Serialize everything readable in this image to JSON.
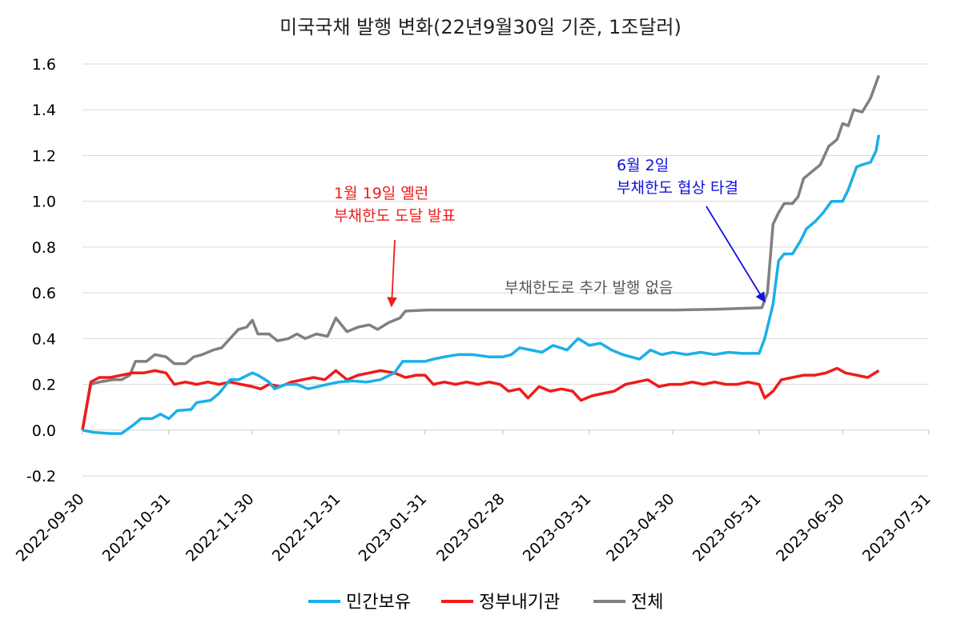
{
  "chart_data": {
    "type": "line",
    "title": "미국국채 발행 변화(22년9월30일 기준, 1조달러)",
    "xlabel": "",
    "ylabel": "",
    "ylim": [
      -0.2,
      1.6
    ],
    "yticks": [
      "1.6",
      "1.4",
      "1.2",
      "1.0",
      "0.8",
      "0.6",
      "0.4",
      "0.2",
      "0.0",
      "-0.2"
    ],
    "xlim": [
      "2022-09-30",
      "2023-07-31"
    ],
    "xticks": [
      "2022-09-30",
      "2022-10-31",
      "2022-11-30",
      "2022-12-31",
      "2023-01-31",
      "2023-02-28",
      "2023-03-31",
      "2023-04-30",
      "2023-05-31",
      "2023-06-30",
      "2023-07-31"
    ],
    "grid": true,
    "legend_position": "bottom",
    "series": [
      {
        "name": "민간보유",
        "color": "#1ab0e8",
        "points": [
          [
            "2022-09-30",
            0.0
          ],
          [
            "2022-10-04",
            -0.01
          ],
          [
            "2022-10-10",
            -0.015
          ],
          [
            "2022-10-14",
            -0.015
          ],
          [
            "2022-10-18",
            0.02
          ],
          [
            "2022-10-21",
            0.05
          ],
          [
            "2022-10-25",
            0.05
          ],
          [
            "2022-10-28",
            0.07
          ],
          [
            "2022-10-31",
            0.05
          ],
          [
            "2022-11-03",
            0.085
          ],
          [
            "2022-11-08",
            0.09
          ],
          [
            "2022-11-10",
            0.12
          ],
          [
            "2022-11-15",
            0.13
          ],
          [
            "2022-11-18",
            0.16
          ],
          [
            "2022-11-22",
            0.22
          ],
          [
            "2022-11-25",
            0.22
          ],
          [
            "2022-11-30",
            0.25
          ],
          [
            "2022-12-02",
            0.24
          ],
          [
            "2022-12-06",
            0.21
          ],
          [
            "2022-12-08",
            0.18
          ],
          [
            "2022-12-12",
            0.2
          ],
          [
            "2022-12-16",
            0.2
          ],
          [
            "2022-12-20",
            0.18
          ],
          [
            "2022-12-27",
            0.2
          ],
          [
            "2022-12-31",
            0.21
          ],
          [
            "2023-01-05",
            0.215
          ],
          [
            "2023-01-10",
            0.21
          ],
          [
            "2023-01-15",
            0.22
          ],
          [
            "2023-01-20",
            0.25
          ],
          [
            "2023-01-23",
            0.3
          ],
          [
            "2023-01-27",
            0.3
          ],
          [
            "2023-01-31",
            0.3
          ],
          [
            "2023-02-03",
            0.31
          ],
          [
            "2023-02-07",
            0.32
          ],
          [
            "2023-02-12",
            0.33
          ],
          [
            "2023-02-17",
            0.33
          ],
          [
            "2023-02-23",
            0.32
          ],
          [
            "2023-02-28",
            0.32
          ],
          [
            "2023-03-03",
            0.33
          ],
          [
            "2023-03-06",
            0.36
          ],
          [
            "2023-03-10",
            0.35
          ],
          [
            "2023-03-14",
            0.34
          ],
          [
            "2023-03-18",
            0.37
          ],
          [
            "2023-03-23",
            0.35
          ],
          [
            "2023-03-27",
            0.4
          ],
          [
            "2023-03-31",
            0.37
          ],
          [
            "2023-04-04",
            0.38
          ],
          [
            "2023-04-08",
            0.35
          ],
          [
            "2023-04-12",
            0.33
          ],
          [
            "2023-04-18",
            0.31
          ],
          [
            "2023-04-22",
            0.35
          ],
          [
            "2023-04-26",
            0.33
          ],
          [
            "2023-04-30",
            0.34
          ],
          [
            "2023-05-05",
            0.33
          ],
          [
            "2023-05-10",
            0.34
          ],
          [
            "2023-05-15",
            0.33
          ],
          [
            "2023-05-20",
            0.34
          ],
          [
            "2023-05-25",
            0.335
          ],
          [
            "2023-05-31",
            0.335
          ],
          [
            "2023-06-02",
            0.4
          ],
          [
            "2023-06-05",
            0.55
          ],
          [
            "2023-06-07",
            0.74
          ],
          [
            "2023-06-09",
            0.77
          ],
          [
            "2023-06-12",
            0.77
          ],
          [
            "2023-06-15",
            0.83
          ],
          [
            "2023-06-17",
            0.88
          ],
          [
            "2023-06-20",
            0.91
          ],
          [
            "2023-06-23",
            0.95
          ],
          [
            "2023-06-26",
            1.0
          ],
          [
            "2023-06-30",
            1.0
          ],
          [
            "2023-07-02",
            1.05
          ],
          [
            "2023-07-05",
            1.15
          ],
          [
            "2023-07-07",
            1.16
          ],
          [
            "2023-07-10",
            1.17
          ],
          [
            "2023-07-12",
            1.22
          ],
          [
            "2023-07-13",
            1.29
          ]
        ]
      },
      {
        "name": "정부내기관",
        "color": "#ee1c1c",
        "points": [
          [
            "2022-09-30",
            0.0
          ],
          [
            "2022-10-03",
            0.21
          ],
          [
            "2022-10-06",
            0.23
          ],
          [
            "2022-10-10",
            0.23
          ],
          [
            "2022-10-14",
            0.24
          ],
          [
            "2022-10-18",
            0.25
          ],
          [
            "2022-10-22",
            0.25
          ],
          [
            "2022-10-26",
            0.26
          ],
          [
            "2022-10-30",
            0.25
          ],
          [
            "2022-11-02",
            0.2
          ],
          [
            "2022-11-06",
            0.21
          ],
          [
            "2022-11-10",
            0.2
          ],
          [
            "2022-11-14",
            0.21
          ],
          [
            "2022-11-18",
            0.2
          ],
          [
            "2022-11-22",
            0.21
          ],
          [
            "2022-11-26",
            0.2
          ],
          [
            "2022-11-30",
            0.19
          ],
          [
            "2022-12-03",
            0.18
          ],
          [
            "2022-12-06",
            0.2
          ],
          [
            "2022-12-10",
            0.19
          ],
          [
            "2022-12-14",
            0.21
          ],
          [
            "2022-12-18",
            0.22
          ],
          [
            "2022-12-22",
            0.23
          ],
          [
            "2022-12-26",
            0.22
          ],
          [
            "2022-12-30",
            0.26
          ],
          [
            "2023-01-03",
            0.22
          ],
          [
            "2023-01-07",
            0.24
          ],
          [
            "2023-01-11",
            0.25
          ],
          [
            "2023-01-15",
            0.26
          ],
          [
            "2023-01-20",
            0.25
          ],
          [
            "2023-01-24",
            0.23
          ],
          [
            "2023-01-28",
            0.24
          ],
          [
            "2023-01-31",
            0.24
          ],
          [
            "2023-02-03",
            0.2
          ],
          [
            "2023-02-07",
            0.21
          ],
          [
            "2023-02-11",
            0.2
          ],
          [
            "2023-02-15",
            0.21
          ],
          [
            "2023-02-19",
            0.2
          ],
          [
            "2023-02-23",
            0.21
          ],
          [
            "2023-02-27",
            0.2
          ],
          [
            "2023-03-02",
            0.17
          ],
          [
            "2023-03-06",
            0.18
          ],
          [
            "2023-03-09",
            0.14
          ],
          [
            "2023-03-13",
            0.19
          ],
          [
            "2023-03-17",
            0.17
          ],
          [
            "2023-03-21",
            0.18
          ],
          [
            "2023-03-25",
            0.17
          ],
          [
            "2023-03-28",
            0.13
          ],
          [
            "2023-04-01",
            0.15
          ],
          [
            "2023-04-05",
            0.16
          ],
          [
            "2023-04-09",
            0.17
          ],
          [
            "2023-04-13",
            0.2
          ],
          [
            "2023-04-17",
            0.21
          ],
          [
            "2023-04-21",
            0.22
          ],
          [
            "2023-04-25",
            0.19
          ],
          [
            "2023-04-29",
            0.2
          ],
          [
            "2023-05-03",
            0.2
          ],
          [
            "2023-05-07",
            0.21
          ],
          [
            "2023-05-11",
            0.2
          ],
          [
            "2023-05-15",
            0.21
          ],
          [
            "2023-05-19",
            0.2
          ],
          [
            "2023-05-23",
            0.2
          ],
          [
            "2023-05-27",
            0.21
          ],
          [
            "2023-05-31",
            0.2
          ],
          [
            "2023-06-02",
            0.14
          ],
          [
            "2023-06-05",
            0.17
          ],
          [
            "2023-06-08",
            0.22
          ],
          [
            "2023-06-12",
            0.23
          ],
          [
            "2023-06-16",
            0.24
          ],
          [
            "2023-06-20",
            0.24
          ],
          [
            "2023-06-24",
            0.25
          ],
          [
            "2023-06-28",
            0.27
          ],
          [
            "2023-07-01",
            0.25
          ],
          [
            "2023-07-05",
            0.24
          ],
          [
            "2023-07-09",
            0.23
          ],
          [
            "2023-07-13",
            0.26
          ]
        ]
      },
      {
        "name": "전체",
        "color": "#808080",
        "points": [
          [
            "2022-09-30",
            0.0
          ],
          [
            "2022-10-03",
            0.2
          ],
          [
            "2022-10-06",
            0.21
          ],
          [
            "2022-10-11",
            0.22
          ],
          [
            "2022-10-14",
            0.22
          ],
          [
            "2022-10-17",
            0.24
          ],
          [
            "2022-10-19",
            0.3
          ],
          [
            "2022-10-23",
            0.3
          ],
          [
            "2022-10-26",
            0.33
          ],
          [
            "2022-10-30",
            0.32
          ],
          [
            "2022-11-02",
            0.29
          ],
          [
            "2022-11-06",
            0.29
          ],
          [
            "2022-11-09",
            0.32
          ],
          [
            "2022-11-12",
            0.33
          ],
          [
            "2022-11-16",
            0.35
          ],
          [
            "2022-11-19",
            0.36
          ],
          [
            "2022-11-22",
            0.4
          ],
          [
            "2022-11-25",
            0.44
          ],
          [
            "2022-11-28",
            0.45
          ],
          [
            "2022-11-30",
            0.48
          ],
          [
            "2022-12-02",
            0.42
          ],
          [
            "2022-12-06",
            0.42
          ],
          [
            "2022-12-09",
            0.39
          ],
          [
            "2022-12-13",
            0.4
          ],
          [
            "2022-12-16",
            0.42
          ],
          [
            "2022-12-19",
            0.4
          ],
          [
            "2022-12-23",
            0.42
          ],
          [
            "2022-12-27",
            0.41
          ],
          [
            "2022-12-30",
            0.49
          ],
          [
            "2023-01-03",
            0.43
          ],
          [
            "2023-01-07",
            0.45
          ],
          [
            "2023-01-11",
            0.46
          ],
          [
            "2023-01-14",
            0.44
          ],
          [
            "2023-01-18",
            0.47
          ],
          [
            "2023-01-22",
            0.49
          ],
          [
            "2023-01-24",
            0.52
          ],
          [
            "2023-02-01",
            0.525
          ],
          [
            "2023-02-15",
            0.525
          ],
          [
            "2023-03-01",
            0.525
          ],
          [
            "2023-03-15",
            0.525
          ],
          [
            "2023-04-01",
            0.525
          ],
          [
            "2023-04-15",
            0.525
          ],
          [
            "2023-05-01",
            0.525
          ],
          [
            "2023-05-15",
            0.528
          ],
          [
            "2023-06-01",
            0.535
          ],
          [
            "2023-06-03",
            0.6
          ],
          [
            "2023-06-05",
            0.9
          ],
          [
            "2023-06-07",
            0.95
          ],
          [
            "2023-06-09",
            0.99
          ],
          [
            "2023-06-12",
            0.99
          ],
          [
            "2023-06-14",
            1.02
          ],
          [
            "2023-06-16",
            1.1
          ],
          [
            "2023-06-19",
            1.13
          ],
          [
            "2023-06-22",
            1.16
          ],
          [
            "2023-06-25",
            1.24
          ],
          [
            "2023-06-28",
            1.27
          ],
          [
            "2023-06-30",
            1.34
          ],
          [
            "2023-07-02",
            1.33
          ],
          [
            "2023-07-04",
            1.4
          ],
          [
            "2023-07-07",
            1.39
          ],
          [
            "2023-07-10",
            1.45
          ],
          [
            "2023-07-13",
            1.55
          ]
        ]
      }
    ],
    "annotations": [
      {
        "lines": [
          "1월 19일 옐런",
          "부채한도 도달 발표"
        ],
        "color": "#ee1c1c",
        "arrow_to": [
          "2023-01-19",
          0.52
        ]
      },
      {
        "lines": [
          "6월 2일",
          "부채한도 협상 타결"
        ],
        "color": "#1010e0",
        "arrow_to": [
          "2023-06-02",
          0.54
        ]
      },
      {
        "lines": [
          "부채한도로 추가 발행 없음"
        ],
        "color": "#595959"
      }
    ]
  }
}
